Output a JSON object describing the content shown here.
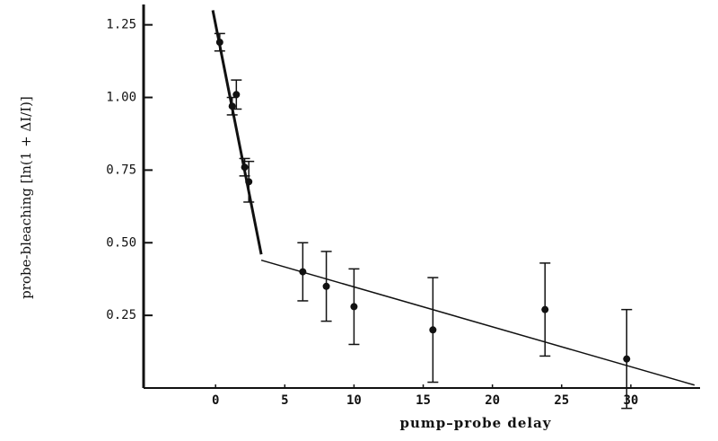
{
  "chart_data": {
    "type": "scatter",
    "x_label": "pump–probe delay",
    "y_label": "probe-bleaching [ln(1 + ΔI/I)]",
    "x": [
      0.3,
      1.2,
      1.5,
      2.1,
      2.4,
      6.3,
      8.0,
      10.0,
      15.7,
      23.8,
      29.7
    ],
    "values": [
      1.19,
      0.97,
      1.01,
      0.76,
      0.71,
      0.4,
      0.35,
      0.28,
      0.2,
      0.27,
      0.1
    ],
    "errors": [
      0.03,
      0.03,
      0.05,
      0.03,
      0.07,
      0.1,
      0.12,
      0.13,
      0.18,
      0.16,
      0.17
    ],
    "color": "#111111",
    "fits": [
      {
        "x": [
          -0.2,
          3.3
        ],
        "values": [
          1.3,
          0.46
        ]
      },
      {
        "x": [
          3.3,
          34.6
        ],
        "values": [
          0.44,
          0.01
        ]
      }
    ],
    "xlim": [
      -5.2,
      35
    ],
    "ylim": [
      0,
      1.32
    ],
    "xticks": [
      0,
      5,
      10,
      15,
      20,
      25,
      30
    ],
    "yticks": [
      {
        "value": 0.25,
        "label": "0.25"
      },
      {
        "value": 0.5,
        "label": "0.50"
      },
      0.75,
      {
        "value": 1,
        "label": "1.00"
      },
      1.25
    ],
    "grid": false
  }
}
